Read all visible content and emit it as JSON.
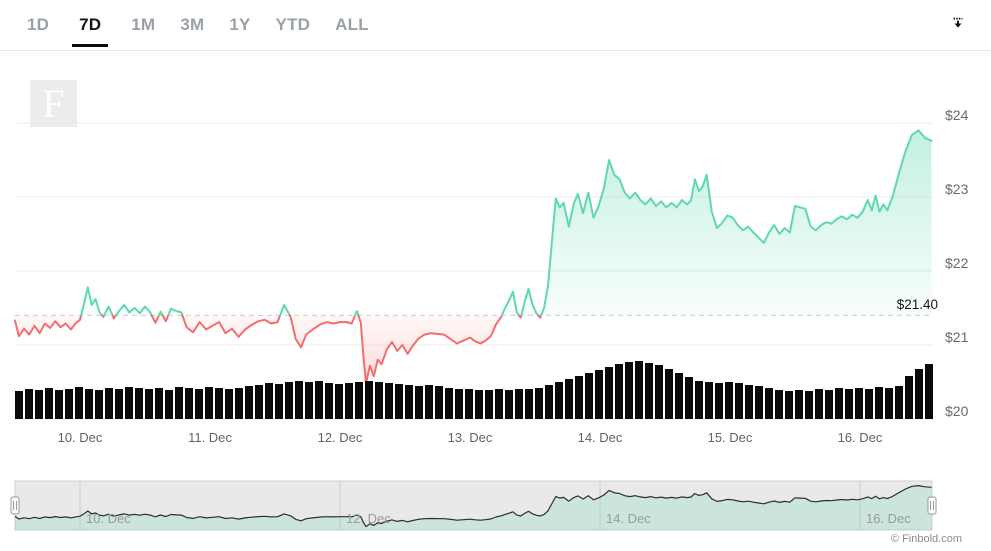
{
  "header": {
    "ranges": [
      {
        "label": "1D",
        "active": false
      },
      {
        "label": "7D",
        "active": true
      },
      {
        "label": "1M",
        "active": false
      },
      {
        "label": "3M",
        "active": false
      },
      {
        "label": "1Y",
        "active": false
      },
      {
        "label": "YTD",
        "active": false
      },
      {
        "label": "ALL",
        "active": false
      }
    ]
  },
  "watermark": {
    "letter": "F"
  },
  "footer": {
    "credit": "© Finbold.com"
  },
  "chart_data": {
    "type": "line",
    "title": "",
    "legend": "none",
    "grid": true,
    "ylim": [
      19.9,
      24.3
    ],
    "xlim_days": [
      9.5,
      16.55
    ],
    "threshold": 21.4,
    "current_price": {
      "label": "$21.40",
      "value": 21.4
    },
    "colors": {
      "up": "#5fd8b0",
      "down": "#f36d6d",
      "volume": "#0a0a0a"
    },
    "y_ticks": [
      {
        "label": "$24",
        "value": 24
      },
      {
        "label": "$23",
        "value": 23
      },
      {
        "label": "$22",
        "value": 22
      },
      {
        "label": "$21",
        "value": 21
      },
      {
        "label": "$20",
        "value": 20
      }
    ],
    "x_ticks": [
      {
        "label": "10. Dec",
        "day": 10
      },
      {
        "label": "11. Dec",
        "day": 11
      },
      {
        "label": "12. Dec",
        "day": 12
      },
      {
        "label": "13. Dec",
        "day": 13
      },
      {
        "label": "14. Dec",
        "day": 14
      },
      {
        "label": "15. Dec",
        "day": 15
      },
      {
        "label": "16. Dec",
        "day": 16
      }
    ],
    "navigator": {
      "x_ticks": [
        {
          "label": "10. Dec",
          "day": 10
        },
        {
          "label": "12. Dec",
          "day": 12
        },
        {
          "label": "14. Dec",
          "day": 14
        },
        {
          "label": "16. Dec",
          "day": 16
        }
      ]
    },
    "series": [
      {
        "name": "price_usd",
        "points": [
          [
            9.5,
            21.33
          ],
          [
            9.53,
            21.12
          ],
          [
            9.57,
            21.22
          ],
          [
            9.61,
            21.14
          ],
          [
            9.65,
            21.26
          ],
          [
            9.69,
            21.16
          ],
          [
            9.73,
            21.29
          ],
          [
            9.77,
            21.23
          ],
          [
            9.81,
            21.32
          ],
          [
            9.85,
            21.24
          ],
          [
            9.89,
            21.29
          ],
          [
            9.93,
            21.21
          ],
          [
            9.97,
            21.3
          ],
          [
            10.0,
            21.34
          ],
          [
            10.03,
            21.55
          ],
          [
            10.06,
            21.78
          ],
          [
            10.09,
            21.54
          ],
          [
            10.12,
            21.62
          ],
          [
            10.15,
            21.44
          ],
          [
            10.18,
            21.38
          ],
          [
            10.22,
            21.52
          ],
          [
            10.26,
            21.36
          ],
          [
            10.3,
            21.46
          ],
          [
            10.34,
            21.54
          ],
          [
            10.38,
            21.44
          ],
          [
            10.42,
            21.5
          ],
          [
            10.46,
            21.43
          ],
          [
            10.5,
            21.52
          ],
          [
            10.54,
            21.44
          ],
          [
            10.58,
            21.3
          ],
          [
            10.62,
            21.45
          ],
          [
            10.66,
            21.32
          ],
          [
            10.7,
            21.49
          ],
          [
            10.74,
            21.46
          ],
          [
            10.78,
            21.44
          ],
          [
            10.82,
            21.24
          ],
          [
            10.87,
            21.17
          ],
          [
            10.92,
            21.31
          ],
          [
            10.97,
            21.21
          ],
          [
            11.02,
            21.26
          ],
          [
            11.07,
            21.31
          ],
          [
            11.12,
            21.16
          ],
          [
            11.17,
            21.22
          ],
          [
            11.22,
            21.11
          ],
          [
            11.27,
            21.21
          ],
          [
            11.32,
            21.27
          ],
          [
            11.37,
            21.32
          ],
          [
            11.42,
            21.34
          ],
          [
            11.47,
            21.29
          ],
          [
            11.52,
            21.31
          ],
          [
            11.57,
            21.54
          ],
          [
            11.62,
            21.38
          ],
          [
            11.66,
            21.08
          ],
          [
            11.7,
            20.97
          ],
          [
            11.74,
            21.14
          ],
          [
            11.79,
            21.21
          ],
          [
            11.85,
            21.28
          ],
          [
            11.9,
            21.31
          ],
          [
            11.95,
            21.29
          ],
          [
            12.0,
            21.31
          ],
          [
            12.05,
            21.31
          ],
          [
            12.09,
            21.29
          ],
          [
            12.13,
            21.46
          ],
          [
            12.16,
            21.3
          ],
          [
            12.18,
            20.85
          ],
          [
            12.2,
            20.48
          ],
          [
            12.23,
            20.72
          ],
          [
            12.26,
            20.58
          ],
          [
            12.29,
            20.8
          ],
          [
            12.32,
            20.74
          ],
          [
            12.36,
            20.94
          ],
          [
            12.4,
            21.04
          ],
          [
            12.44,
            20.92
          ],
          [
            12.48,
            21.0
          ],
          [
            12.52,
            20.88
          ],
          [
            12.56,
            20.99
          ],
          [
            12.6,
            21.08
          ],
          [
            12.65,
            21.14
          ],
          [
            12.7,
            21.16
          ],
          [
            12.75,
            21.15
          ],
          [
            12.8,
            21.14
          ],
          [
            12.85,
            21.08
          ],
          [
            12.9,
            21.02
          ],
          [
            12.95,
            21.06
          ],
          [
            13.0,
            21.1
          ],
          [
            13.04,
            21.05
          ],
          [
            13.08,
            21.02
          ],
          [
            13.12,
            21.06
          ],
          [
            13.16,
            21.12
          ],
          [
            13.2,
            21.28
          ],
          [
            13.24,
            21.38
          ],
          [
            13.27,
            21.5
          ],
          [
            13.3,
            21.6
          ],
          [
            13.33,
            21.72
          ],
          [
            13.36,
            21.44
          ],
          [
            13.39,
            21.37
          ],
          [
            13.42,
            21.58
          ],
          [
            13.45,
            21.76
          ],
          [
            13.48,
            21.55
          ],
          [
            13.51,
            21.43
          ],
          [
            13.54,
            21.37
          ],
          [
            13.57,
            21.5
          ],
          [
            13.6,
            21.8
          ],
          [
            13.63,
            22.4
          ],
          [
            13.66,
            22.98
          ],
          [
            13.69,
            22.86
          ],
          [
            13.72,
            22.92
          ],
          [
            13.76,
            22.6
          ],
          [
            13.8,
            22.92
          ],
          [
            13.83,
            23.04
          ],
          [
            13.87,
            22.78
          ],
          [
            13.91,
            23.06
          ],
          [
            13.95,
            22.72
          ],
          [
            13.99,
            22.88
          ],
          [
            14.03,
            23.12
          ],
          [
            14.07,
            23.5
          ],
          [
            14.11,
            23.3
          ],
          [
            14.15,
            23.24
          ],
          [
            14.19,
            23.06
          ],
          [
            14.23,
            22.98
          ],
          [
            14.27,
            23.06
          ],
          [
            14.31,
            22.96
          ],
          [
            14.35,
            22.9
          ],
          [
            14.39,
            22.98
          ],
          [
            14.43,
            22.88
          ],
          [
            14.47,
            22.94
          ],
          [
            14.51,
            22.86
          ],
          [
            14.55,
            22.92
          ],
          [
            14.59,
            22.86
          ],
          [
            14.63,
            22.96
          ],
          [
            14.67,
            22.9
          ],
          [
            14.7,
            22.95
          ],
          [
            14.73,
            23.24
          ],
          [
            14.76,
            23.08
          ],
          [
            14.79,
            23.14
          ],
          [
            14.82,
            23.3
          ],
          [
            14.86,
            22.8
          ],
          [
            14.9,
            22.58
          ],
          [
            14.94,
            22.65
          ],
          [
            14.98,
            22.75
          ],
          [
            15.02,
            22.72
          ],
          [
            15.06,
            22.62
          ],
          [
            15.1,
            22.55
          ],
          [
            15.14,
            22.6
          ],
          [
            15.18,
            22.52
          ],
          [
            15.22,
            22.45
          ],
          [
            15.26,
            22.38
          ],
          [
            15.3,
            22.52
          ],
          [
            15.34,
            22.62
          ],
          [
            15.38,
            22.5
          ],
          [
            15.42,
            22.58
          ],
          [
            15.46,
            22.52
          ],
          [
            15.5,
            22.88
          ],
          [
            15.54,
            22.86
          ],
          [
            15.58,
            22.84
          ],
          [
            15.62,
            22.6
          ],
          [
            15.66,
            22.55
          ],
          [
            15.7,
            22.62
          ],
          [
            15.74,
            22.66
          ],
          [
            15.78,
            22.64
          ],
          [
            15.82,
            22.7
          ],
          [
            15.86,
            22.74
          ],
          [
            15.9,
            22.7
          ],
          [
            15.94,
            22.76
          ],
          [
            15.98,
            22.72
          ],
          [
            16.02,
            22.8
          ],
          [
            16.06,
            22.96
          ],
          [
            16.09,
            22.82
          ],
          [
            16.12,
            23.02
          ],
          [
            16.15,
            22.8
          ],
          [
            16.18,
            22.9
          ],
          [
            16.21,
            22.82
          ],
          [
            16.25,
            23.0
          ],
          [
            16.3,
            23.32
          ],
          [
            16.35,
            23.62
          ],
          [
            16.4,
            23.84
          ],
          [
            16.45,
            23.9
          ],
          [
            16.5,
            23.8
          ],
          [
            16.55,
            23.76
          ]
        ]
      }
    ],
    "volume_bars": [
      28,
      30,
      29,
      31,
      29,
      30,
      32,
      30,
      29,
      31,
      30,
      32,
      31,
      30,
      31,
      29,
      32,
      31,
      30,
      32,
      31,
      30,
      31,
      33,
      34,
      36,
      35,
      37,
      38,
      37,
      38,
      36,
      35,
      36,
      37,
      38,
      37,
      36,
      35,
      34,
      33,
      34,
      33,
      31,
      30,
      30,
      29,
      29,
      30,
      29,
      30,
      30,
      31,
      34,
      37,
      40,
      43,
      46,
      49,
      52,
      55,
      57,
      58,
      56,
      54,
      50,
      46,
      42,
      38,
      37,
      36,
      37,
      36,
      34,
      33,
      31,
      29,
      28,
      29,
      28,
      30,
      29,
      31,
      30,
      31,
      30,
      32,
      31,
      33,
      43,
      50,
      55
    ]
  }
}
